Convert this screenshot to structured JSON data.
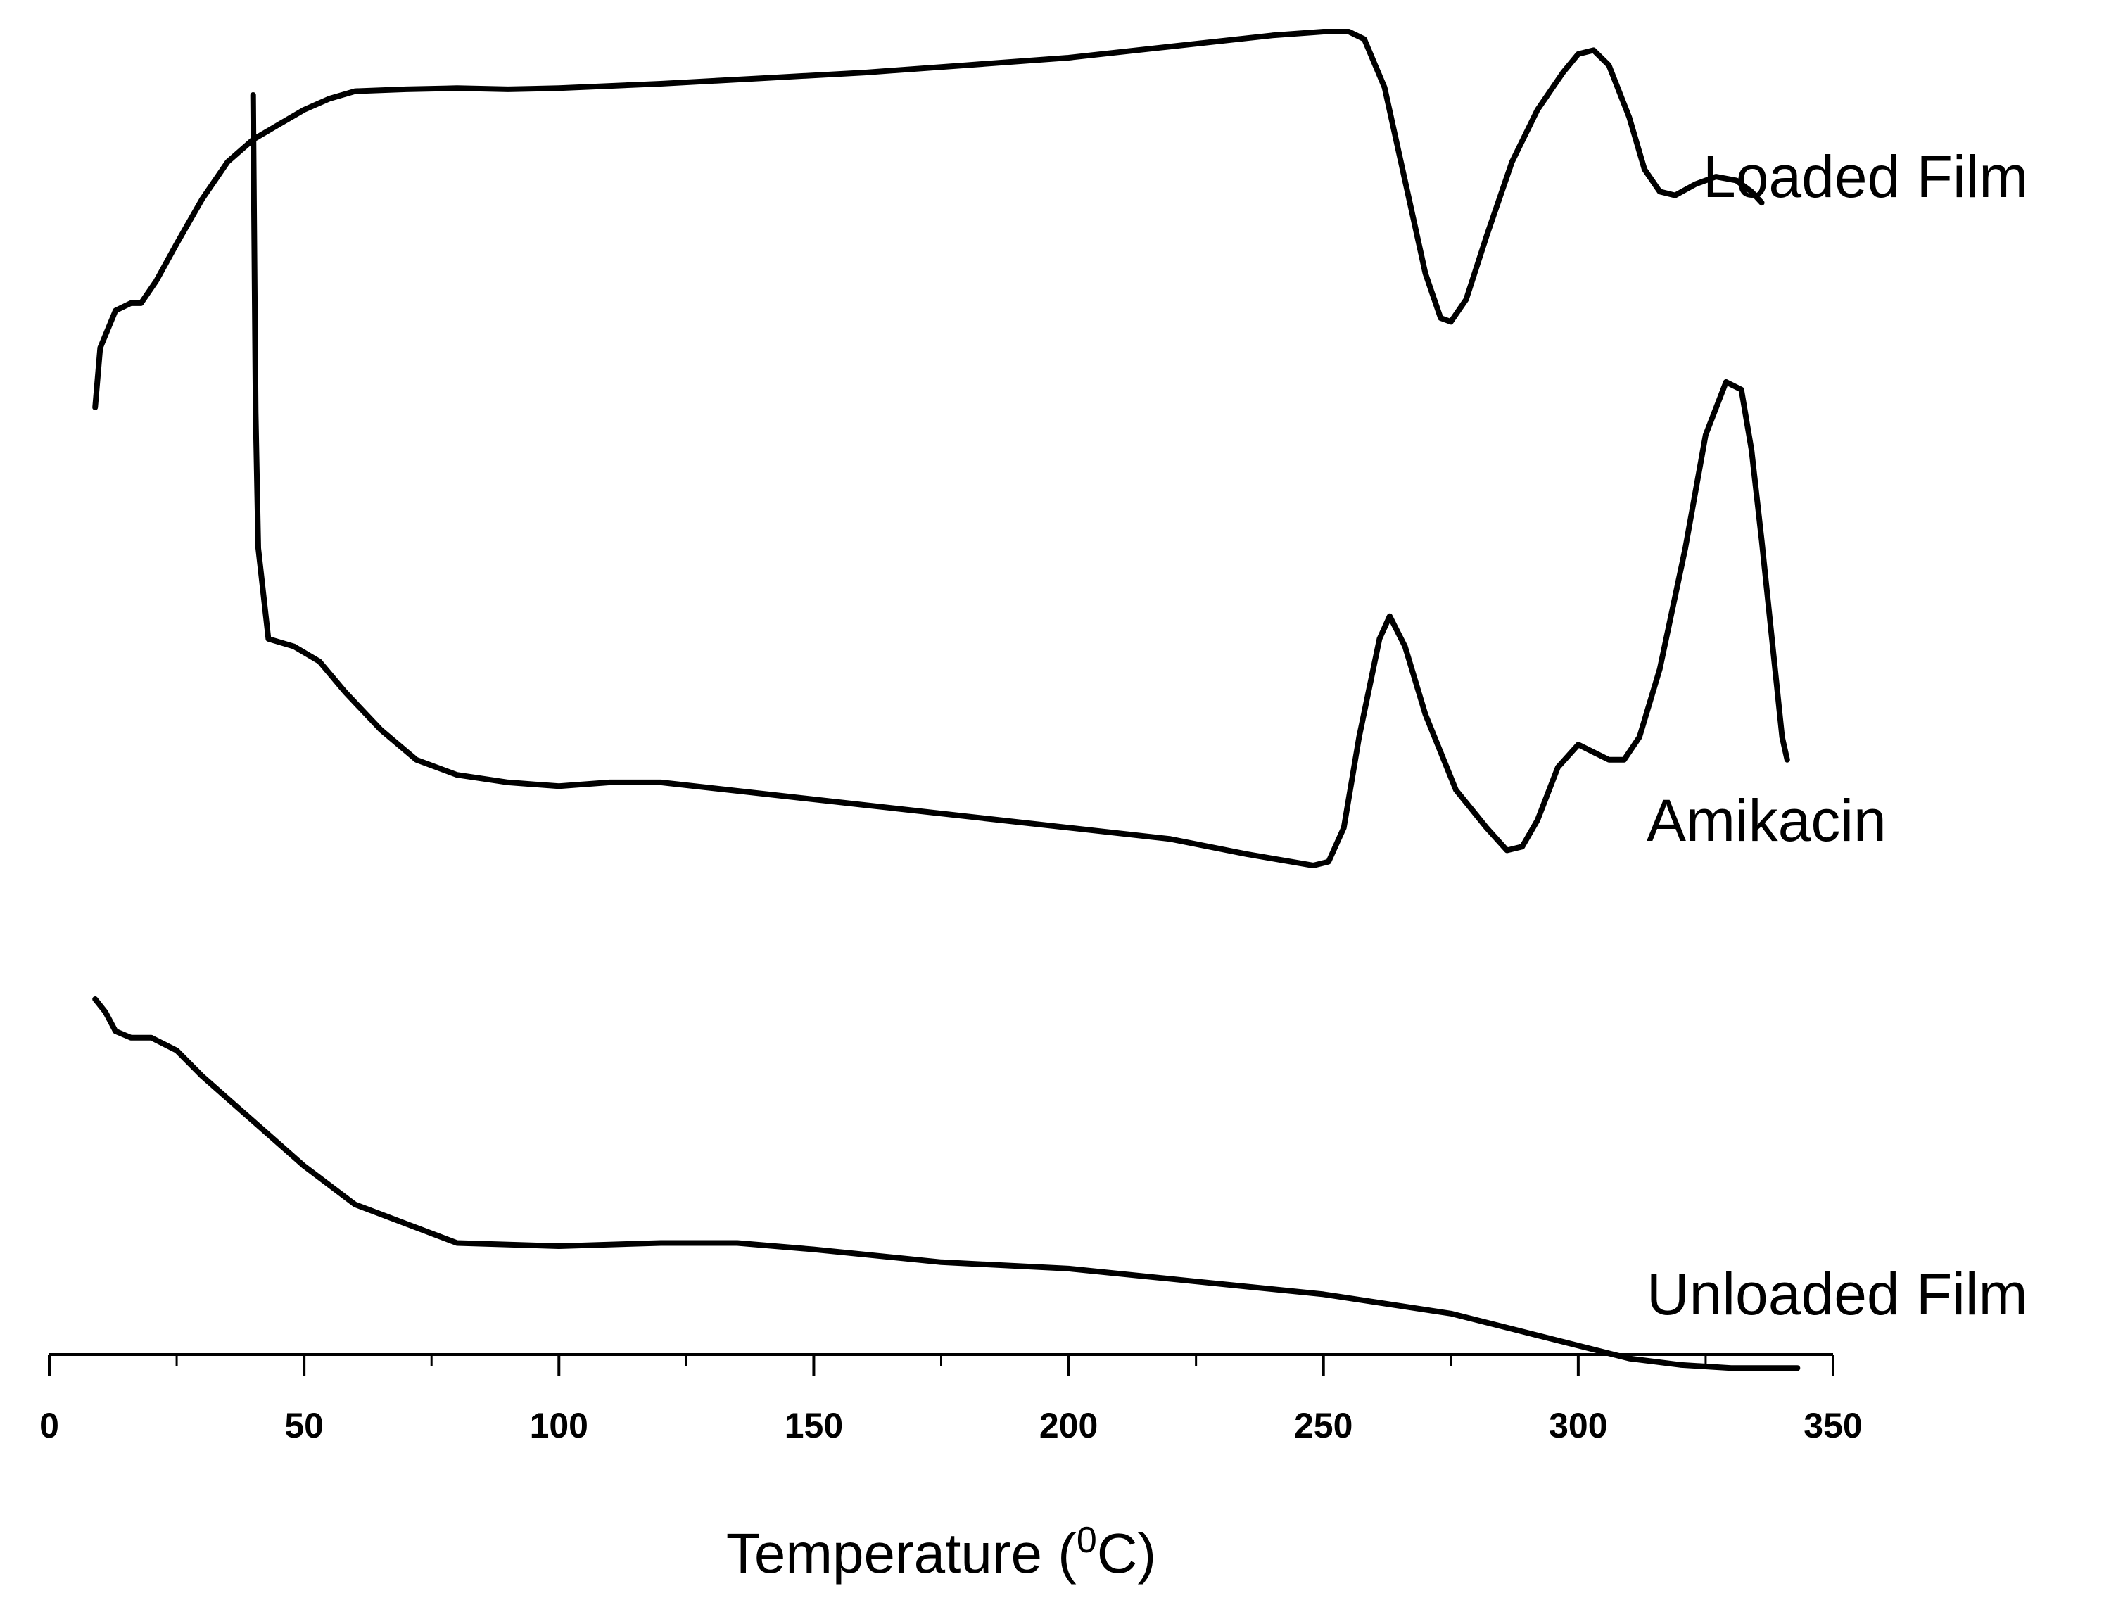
{
  "chart_data": {
    "type": "line",
    "title": "",
    "xlabel": "Temperature (",
    "xlabel_sup": "0",
    "xlabel_end": "C)",
    "ylabel": "",
    "xlim": [
      0,
      350
    ],
    "ticks": [
      0,
      50,
      100,
      150,
      200,
      250,
      300,
      350
    ],
    "minor_tick_step": 25,
    "legend": "inline labels at right end of each curve",
    "grid": false,
    "series": [
      {
        "name": "Loaded Film",
        "points": [
          [
            9,
            4
          ],
          [
            10,
            20
          ],
          [
            13,
            30
          ],
          [
            16,
            32
          ],
          [
            18,
            32
          ],
          [
            21,
            38
          ],
          [
            25,
            48
          ],
          [
            30,
            60
          ],
          [
            35,
            70
          ],
          [
            40,
            76
          ],
          [
            45,
            80
          ],
          [
            50,
            84
          ],
          [
            55,
            87
          ],
          [
            60,
            89
          ],
          [
            70,
            89.5
          ],
          [
            80,
            89.8
          ],
          [
            90,
            89.5
          ],
          [
            100,
            89.8
          ],
          [
            120,
            91
          ],
          [
            140,
            92.5
          ],
          [
            160,
            94
          ],
          [
            180,
            96
          ],
          [
            200,
            98
          ],
          [
            220,
            101
          ],
          [
            240,
            104
          ],
          [
            250,
            105
          ],
          [
            255,
            105
          ],
          [
            258,
            103
          ],
          [
            262,
            90
          ],
          [
            266,
            65
          ],
          [
            270,
            40
          ],
          [
            273,
            28
          ],
          [
            275,
            27
          ],
          [
            278,
            33
          ],
          [
            282,
            50
          ],
          [
            287,
            70
          ],
          [
            292,
            84
          ],
          [
            297,
            94
          ],
          [
            300,
            99
          ],
          [
            303,
            100
          ],
          [
            306,
            96
          ],
          [
            310,
            82
          ],
          [
            313,
            68
          ],
          [
            316,
            62
          ],
          [
            319,
            61
          ],
          [
            323,
            64
          ],
          [
            327,
            66
          ],
          [
            331,
            65
          ],
          [
            334,
            62
          ],
          [
            336,
            59
          ]
        ]
      },
      {
        "name": "Amikacin",
        "points": [
          [
            40,
            102
          ],
          [
            40.5,
            60
          ],
          [
            41,
            42
          ],
          [
            43,
            30
          ],
          [
            48,
            29
          ],
          [
            53,
            27
          ],
          [
            58,
            23
          ],
          [
            65,
            18
          ],
          [
            72,
            14
          ],
          [
            80,
            12
          ],
          [
            90,
            11
          ],
          [
            100,
            10.5
          ],
          [
            110,
            11
          ],
          [
            120,
            11
          ],
          [
            140,
            9.5
          ],
          [
            160,
            8
          ],
          [
            180,
            6.5
          ],
          [
            200,
            5
          ],
          [
            220,
            3.5
          ],
          [
            235,
            1.5
          ],
          [
            248,
            0
          ],
          [
            251,
            0.5
          ],
          [
            254,
            5
          ],
          [
            257,
            17
          ],
          [
            261,
            30
          ],
          [
            263,
            33
          ],
          [
            266,
            29
          ],
          [
            270,
            20
          ],
          [
            276,
            10
          ],
          [
            282,
            5
          ],
          [
            286,
            2
          ],
          [
            289,
            2.5
          ],
          [
            292,
            6
          ],
          [
            296,
            13
          ],
          [
            300,
            16
          ],
          [
            303,
            15
          ],
          [
            306,
            14
          ],
          [
            309,
            14
          ],
          [
            312,
            17
          ],
          [
            316,
            26
          ],
          [
            321,
            42
          ],
          [
            325,
            57
          ],
          [
            329,
            64
          ],
          [
            332,
            63
          ],
          [
            334,
            55
          ],
          [
            336,
            43
          ],
          [
            338,
            30
          ],
          [
            340,
            17
          ],
          [
            341,
            14
          ]
        ]
      },
      {
        "name": "Unloaded Film",
        "points": [
          [
            9,
            102
          ],
          [
            11,
            100
          ],
          [
            13,
            97
          ],
          [
            16,
            96
          ],
          [
            20,
            96
          ],
          [
            25,
            94
          ],
          [
            30,
            90
          ],
          [
            40,
            83
          ],
          [
            50,
            76
          ],
          [
            60,
            70
          ],
          [
            70,
            67
          ],
          [
            80,
            64
          ],
          [
            100,
            63.5
          ],
          [
            120,
            64
          ],
          [
            135,
            64
          ],
          [
            150,
            63
          ],
          [
            175,
            61
          ],
          [
            200,
            60
          ],
          [
            225,
            58
          ],
          [
            250,
            56
          ],
          [
            275,
            53
          ],
          [
            300,
            48
          ],
          [
            310,
            46
          ],
          [
            320,
            45
          ],
          [
            330,
            44.5
          ],
          [
            343,
            44.5
          ]
        ]
      }
    ]
  }
}
